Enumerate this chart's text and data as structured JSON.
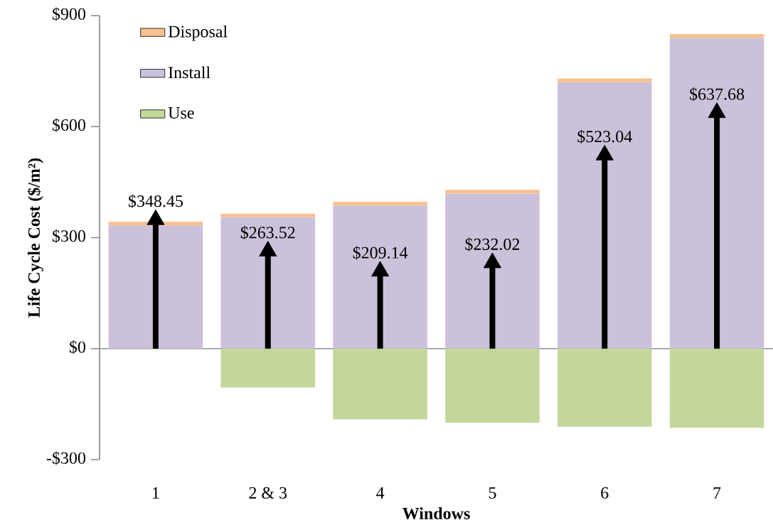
{
  "chart_data": {
    "type": "bar",
    "stacked": true,
    "xlabel": "Windows",
    "ylabel": "Life Cycle Cost ($/m²)",
    "categories": [
      "1",
      "2 & 3",
      "4",
      "5",
      "6",
      "7"
    ],
    "series": [
      {
        "name": "Use",
        "color": "#c4d79b",
        "values": [
          0,
          -105,
          -191,
          -200,
          -211,
          -214
        ]
      },
      {
        "name": "Install",
        "color": "#ccc1da",
        "values": [
          333,
          355,
          387,
          419,
          720,
          840
        ]
      },
      {
        "name": "Disposal",
        "color": "#fac090",
        "values": [
          10,
          10,
          10,
          10,
          10,
          10
        ]
      },
      {
        "type": "lollipop",
        "color": "#000000",
        "marker": "triangle",
        "values": [
          348.45,
          263.52,
          209.14,
          232.02,
          523.04,
          637.68
        ],
        "value_labels": [
          "$348.45",
          "$263.52",
          "$209.14",
          "$232.02",
          "$523.04",
          "$637.68"
        ]
      }
    ],
    "ylim": [
      -300,
      900
    ],
    "yticks": [
      {
        "value": -300,
        "label": "-$300"
      },
      {
        "value": 0,
        "label": "$0"
      },
      {
        "value": 300,
        "label": "$300"
      },
      {
        "value": 600,
        "label": "$600"
      },
      {
        "value": 900,
        "label": "$900"
      }
    ],
    "legend": "top left"
  }
}
